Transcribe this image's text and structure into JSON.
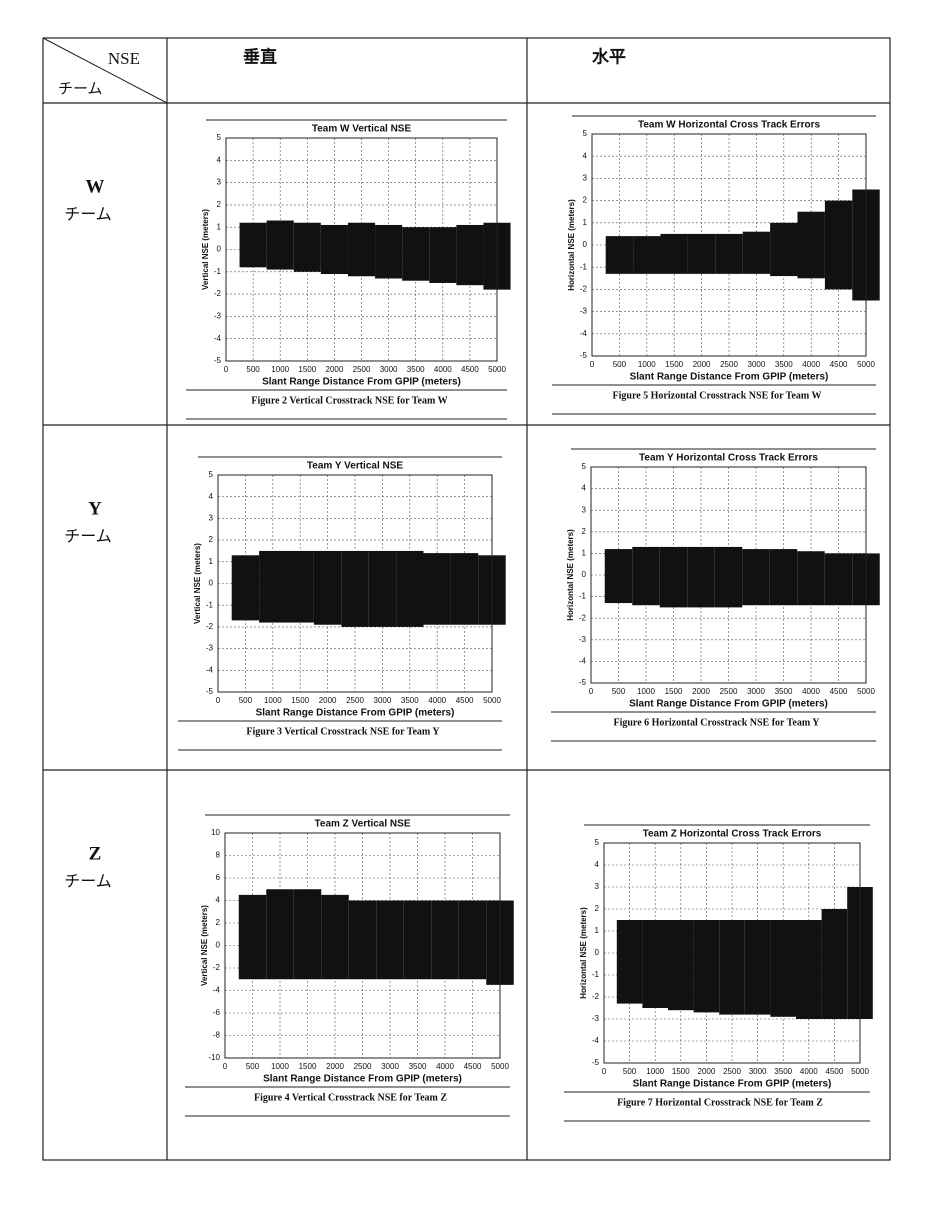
{
  "table": {
    "corner": {
      "top": "NSE",
      "bottom": "チーム"
    },
    "columns": [
      "垂直",
      "水平"
    ],
    "rows": [
      {
        "team": "W",
        "label": "チーム",
        "charts": [
          {
            "title": "Team W Vertical NSE",
            "ylabel": "Vertical NSE (meters)",
            "xlabel": "Slant Range Distance From GPIP (meters)",
            "caption": "Figure 2 Vertical Crosstrack NSE for Team W",
            "xlim": [
              0,
              5000
            ],
            "xticks": [
              0,
              500,
              1000,
              1500,
              2000,
              2500,
              3000,
              3500,
              4000,
              4500,
              5000
            ],
            "ylim": [
              -5,
              5
            ],
            "yticks": [
              -5,
              -4,
              -3,
              -2,
              -1,
              0,
              1,
              2,
              3,
              4,
              5
            ],
            "band": {
              "x": [
                500,
                1000,
                1500,
                2000,
                2500,
                3000,
                3500,
                4000,
                4500,
                5000
              ],
              "high": [
                1.2,
                1.3,
                1.2,
                1.1,
                1.2,
                1.1,
                1.0,
                1.0,
                1.1,
                1.2
              ],
              "low": [
                -0.8,
                -0.9,
                -1,
                -1.1,
                -1.2,
                -1.3,
                -1.4,
                -1.5,
                -1.6,
                -1.8
              ]
            }
          },
          {
            "title": "Team W Horizontal Cross Track Errors",
            "ylabel": "Horizontal NSE (meters)",
            "xlabel": "Slant Range Distance From GPIP (meters)",
            "caption": "Figure 5 Horizontal Crosstrack NSE for Team W",
            "xlim": [
              0,
              5000
            ],
            "xticks": [
              0,
              500,
              1000,
              1500,
              2000,
              2500,
              3000,
              3500,
              4000,
              4500,
              5000
            ],
            "ylim": [
              -5,
              5
            ],
            "yticks": [
              -5,
              -4,
              -3,
              -2,
              -1,
              0,
              1,
              2,
              3,
              4,
              5
            ],
            "band": {
              "x": [
                500,
                1000,
                1500,
                2000,
                2500,
                3000,
                3500,
                4000,
                4500,
                5000
              ],
              "high": [
                0.4,
                0.4,
                0.5,
                0.5,
                0.5,
                0.6,
                1,
                1.5,
                2,
                2.5
              ],
              "low": [
                -1.3,
                -1.3,
                -1.3,
                -1.3,
                -1.3,
                -1.3,
                -1.4,
                -1.5,
                -2,
                -2.5
              ]
            }
          }
        ]
      },
      {
        "team": "Y",
        "label": "チーム",
        "charts": [
          {
            "title": "Team Y Vertical NSE",
            "ylabel": "Vertical NSE (meters)",
            "xlabel": "Slant Range Distance From GPIP (meters)",
            "caption": "Figure 3 Vertical Crosstrack NSE for Team Y",
            "xlim": [
              0,
              5000
            ],
            "xticks": [
              0,
              500,
              1000,
              1500,
              2000,
              2500,
              3000,
              3500,
              4000,
              4500,
              5000
            ],
            "ylim": [
              -5,
              5
            ],
            "yticks": [
              -5,
              -4,
              -3,
              -2,
              -1,
              0,
              1,
              2,
              3,
              4,
              5
            ],
            "band": {
              "x": [
                500,
                1000,
                1500,
                2000,
                2500,
                3000,
                3500,
                4000,
                4500,
                5000
              ],
              "high": [
                1.3,
                1.5,
                1.5,
                1.5,
                1.5,
                1.5,
                1.5,
                1.4,
                1.4,
                1.3
              ],
              "low": [
                -1.7,
                -1.8,
                -1.8,
                -1.9,
                -2,
                -2,
                -2,
                -1.9,
                -1.9,
                -1.9
              ]
            }
          },
          {
            "title": "Team Y Horizontal Cross Track Errors",
            "ylabel": "Horizontal NSE (meters)",
            "xlabel": "Slant Range Distance From GPIP (meters)",
            "caption": "Figure 6 Horizontal Crosstrack NSE for Team Y",
            "xlim": [
              0,
              5000
            ],
            "xticks": [
              0,
              500,
              1000,
              1500,
              2000,
              2500,
              3000,
              3500,
              4000,
              4500,
              5000
            ],
            "ylim": [
              -5,
              5
            ],
            "yticks": [
              -5,
              -4,
              -3,
              -2,
              -1,
              0,
              1,
              2,
              3,
              4,
              5
            ],
            "band": {
              "x": [
                500,
                1000,
                1500,
                2000,
                2500,
                3000,
                3500,
                4000,
                4500,
                5000
              ],
              "high": [
                1.2,
                1.3,
                1.3,
                1.3,
                1.3,
                1.2,
                1.2,
                1.1,
                1,
                1
              ],
              "low": [
                -1.3,
                -1.4,
                -1.5,
                -1.5,
                -1.5,
                -1.4,
                -1.4,
                -1.4,
                -1.4,
                -1.4
              ]
            }
          }
        ]
      },
      {
        "team": "Z",
        "label": "チーム",
        "charts": [
          {
            "title": "Team Z Vertical NSE",
            "ylabel": "Vertical NSE (meters)",
            "xlabel": "Slant Range Distance From GPIP (meters)",
            "caption": "Figure 4 Vertical Crosstrack NSE for Team Z",
            "xlim": [
              0,
              5000
            ],
            "xticks": [
              0,
              500,
              1000,
              1500,
              2000,
              2500,
              3000,
              3500,
              4000,
              4500,
              5000
            ],
            "ylim": [
              -10,
              10
            ],
            "yticks": [
              -10,
              -8,
              -6,
              -4,
              -2,
              0,
              2,
              4,
              6,
              8,
              10
            ],
            "band": {
              "x": [
                500,
                1000,
                1500,
                2000,
                2500,
                3000,
                3500,
                4000,
                4500,
                5000
              ],
              "high": [
                4.5,
                5,
                5,
                4.5,
                4,
                4,
                4,
                4,
                4,
                4
              ],
              "low": [
                -3,
                -3,
                -3,
                -3,
                -3,
                -3,
                -3,
                -3,
                -3,
                -3.5
              ]
            }
          },
          {
            "title": "Team Z Horizontal Cross Track Errors",
            "ylabel": "Horizontal NSE (meters)",
            "xlabel": "Slant Range Distance From GPIP (meters)",
            "caption": "Figure 7 Horizontal Crosstrack NSE for Team Z",
            "xlim": [
              0,
              5000
            ],
            "xticks": [
              0,
              500,
              1000,
              1500,
              2000,
              2500,
              3000,
              3500,
              4000,
              4500,
              5000
            ],
            "ylim": [
              -5,
              5
            ],
            "yticks": [
              -5,
              -4,
              -3,
              -2,
              -1,
              0,
              1,
              2,
              3,
              4,
              5
            ],
            "band": {
              "x": [
                500,
                1000,
                1500,
                2000,
                2500,
                3000,
                3500,
                4000,
                4500,
                5000
              ],
              "high": [
                1.5,
                1.5,
                1.5,
                1.5,
                1.5,
                1.5,
                1.5,
                1.5,
                2,
                3
              ],
              "low": [
                -2.3,
                -2.5,
                -2.6,
                -2.7,
                -2.8,
                -2.8,
                -2.9,
                -3,
                -3,
                -3
              ]
            }
          }
        ]
      }
    ]
  }
}
